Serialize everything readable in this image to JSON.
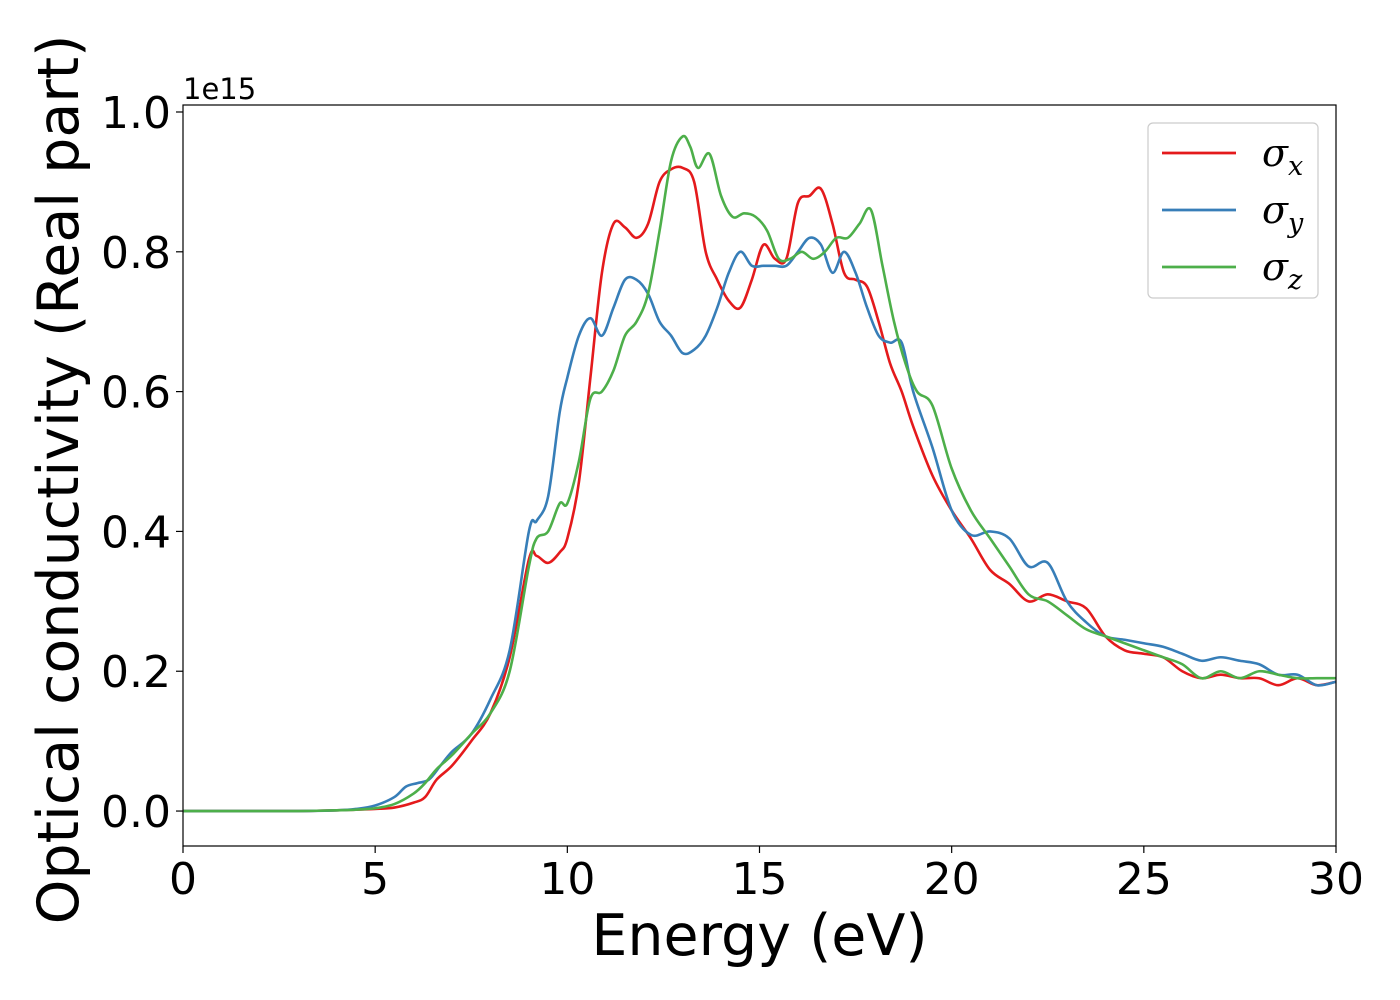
{
  "chart_data": {
    "type": "line",
    "xlabel": "Energy (eV)",
    "ylabel": "Optical conductivity (Real part)",
    "y_offset_text": "1e15",
    "xlim": [
      0,
      30
    ],
    "ylim": [
      -0.05,
      1.01
    ],
    "xticks": [
      0,
      5,
      10,
      15,
      20,
      25,
      30
    ],
    "xtick_labels": [
      "0",
      "5",
      "10",
      "15",
      "20",
      "25",
      "30"
    ],
    "yticks": [
      0.0,
      0.2,
      0.4,
      0.6,
      0.8,
      1.0
    ],
    "ytick_labels": [
      "0.0",
      "0.2",
      "0.4",
      "0.6",
      "0.8",
      "1.0"
    ],
    "legend_position": "top-right",
    "grid": false,
    "series": [
      {
        "name": "σx",
        "base": "σ",
        "sub": "x",
        "color": "#e41a1c",
        "x": [
          0,
          1,
          2,
          3,
          4,
          4.5,
          5,
          5.5,
          6,
          6.3,
          6.6,
          7,
          7.5,
          8,
          8.5,
          9,
          9.2,
          9.5,
          9.8,
          10,
          10.3,
          10.6,
          10.9,
          11.2,
          11.5,
          11.8,
          12.1,
          12.4,
          12.7,
          13.0,
          13.3,
          13.6,
          13.9,
          14.2,
          14.5,
          14.8,
          15.1,
          15.4,
          15.7,
          16.0,
          16.3,
          16.6,
          16.9,
          17.2,
          17.5,
          17.8,
          18.1,
          18.4,
          18.7,
          19.0,
          19.5,
          20,
          20.5,
          21,
          21.5,
          22,
          22.5,
          23,
          23.5,
          24,
          24.5,
          25,
          25.5,
          26,
          26.5,
          27,
          27.5,
          28,
          28.5,
          29,
          29.5,
          30
        ],
        "y": [
          0,
          0,
          0,
          0,
          0.001,
          0.002,
          0.003,
          0.005,
          0.012,
          0.02,
          0.045,
          0.065,
          0.1,
          0.14,
          0.22,
          0.36,
          0.365,
          0.355,
          0.37,
          0.39,
          0.47,
          0.62,
          0.77,
          0.84,
          0.835,
          0.82,
          0.84,
          0.9,
          0.918,
          0.92,
          0.9,
          0.8,
          0.76,
          0.73,
          0.72,
          0.76,
          0.81,
          0.79,
          0.79,
          0.87,
          0.88,
          0.89,
          0.84,
          0.77,
          0.76,
          0.75,
          0.7,
          0.64,
          0.6,
          0.55,
          0.48,
          0.43,
          0.39,
          0.345,
          0.325,
          0.3,
          0.31,
          0.3,
          0.29,
          0.25,
          0.23,
          0.225,
          0.22,
          0.2,
          0.19,
          0.195,
          0.19,
          0.19,
          0.18,
          0.19,
          0.18,
          0.185
        ]
      },
      {
        "name": "σy",
        "base": "σ",
        "sub": "y",
        "color": "#377eb8",
        "x": [
          0,
          1,
          2,
          3,
          4,
          4.5,
          5,
          5.5,
          5.8,
          6.1,
          6.4,
          6.7,
          7,
          7.5,
          8,
          8.5,
          9,
          9.2,
          9.5,
          9.8,
          10,
          10.3,
          10.6,
          10.9,
          11.2,
          11.5,
          11.8,
          12.1,
          12.4,
          12.7,
          13.0,
          13.3,
          13.6,
          13.9,
          14.2,
          14.5,
          14.8,
          15.1,
          15.4,
          15.7,
          16.0,
          16.3,
          16.6,
          16.9,
          17.2,
          17.5,
          17.8,
          18.1,
          18.4,
          18.7,
          19.0,
          19.5,
          20,
          20.5,
          21,
          21.5,
          22,
          22.5,
          23,
          23.5,
          24,
          24.5,
          25,
          25.5,
          26,
          26.5,
          27,
          27.5,
          28,
          28.5,
          29,
          29.5,
          30
        ],
        "y": [
          0,
          0,
          0,
          0,
          0.001,
          0.003,
          0.008,
          0.02,
          0.035,
          0.04,
          0.045,
          0.065,
          0.085,
          0.11,
          0.16,
          0.23,
          0.4,
          0.415,
          0.45,
          0.57,
          0.62,
          0.68,
          0.705,
          0.68,
          0.72,
          0.76,
          0.76,
          0.74,
          0.7,
          0.68,
          0.655,
          0.66,
          0.68,
          0.72,
          0.77,
          0.8,
          0.78,
          0.78,
          0.78,
          0.78,
          0.8,
          0.82,
          0.81,
          0.77,
          0.8,
          0.77,
          0.72,
          0.68,
          0.67,
          0.67,
          0.6,
          0.52,
          0.43,
          0.395,
          0.4,
          0.39,
          0.35,
          0.355,
          0.3,
          0.27,
          0.25,
          0.245,
          0.24,
          0.235,
          0.225,
          0.215,
          0.22,
          0.215,
          0.21,
          0.195,
          0.195,
          0.18,
          0.185
        ]
      },
      {
        "name": "σz",
        "base": "σ",
        "sub": "z",
        "color": "#4daf4a",
        "x": [
          0,
          1,
          2,
          3,
          4,
          4.5,
          5,
          5.5,
          6,
          6.3,
          6.6,
          7,
          7.5,
          8,
          8.5,
          9,
          9.2,
          9.5,
          9.8,
          10,
          10.3,
          10.6,
          10.9,
          11.2,
          11.5,
          11.8,
          12.1,
          12.4,
          12.7,
          13.0,
          13.2,
          13.4,
          13.7,
          14.0,
          14.3,
          14.6,
          14.9,
          15.2,
          15.5,
          15.8,
          16.1,
          16.4,
          16.7,
          17.0,
          17.3,
          17.6,
          17.9,
          18.2,
          18.5,
          18.8,
          19.1,
          19.5,
          20,
          20.5,
          21,
          21.5,
          22,
          22.5,
          23,
          23.5,
          24,
          24.5,
          25,
          25.5,
          26,
          26.5,
          27,
          27.5,
          28,
          28.5,
          29,
          29.5,
          30
        ],
        "y": [
          0,
          0,
          0,
          0,
          0.001,
          0.002,
          0.004,
          0.01,
          0.025,
          0.04,
          0.06,
          0.08,
          0.11,
          0.14,
          0.2,
          0.35,
          0.39,
          0.4,
          0.44,
          0.44,
          0.5,
          0.59,
          0.6,
          0.63,
          0.68,
          0.7,
          0.74,
          0.83,
          0.93,
          0.965,
          0.95,
          0.92,
          0.94,
          0.88,
          0.85,
          0.855,
          0.85,
          0.83,
          0.79,
          0.79,
          0.8,
          0.79,
          0.8,
          0.82,
          0.82,
          0.84,
          0.86,
          0.78,
          0.7,
          0.64,
          0.6,
          0.58,
          0.49,
          0.43,
          0.39,
          0.35,
          0.31,
          0.3,
          0.28,
          0.26,
          0.25,
          0.24,
          0.23,
          0.22,
          0.21,
          0.19,
          0.2,
          0.19,
          0.2,
          0.195,
          0.19,
          0.19,
          0.19
        ]
      }
    ]
  }
}
